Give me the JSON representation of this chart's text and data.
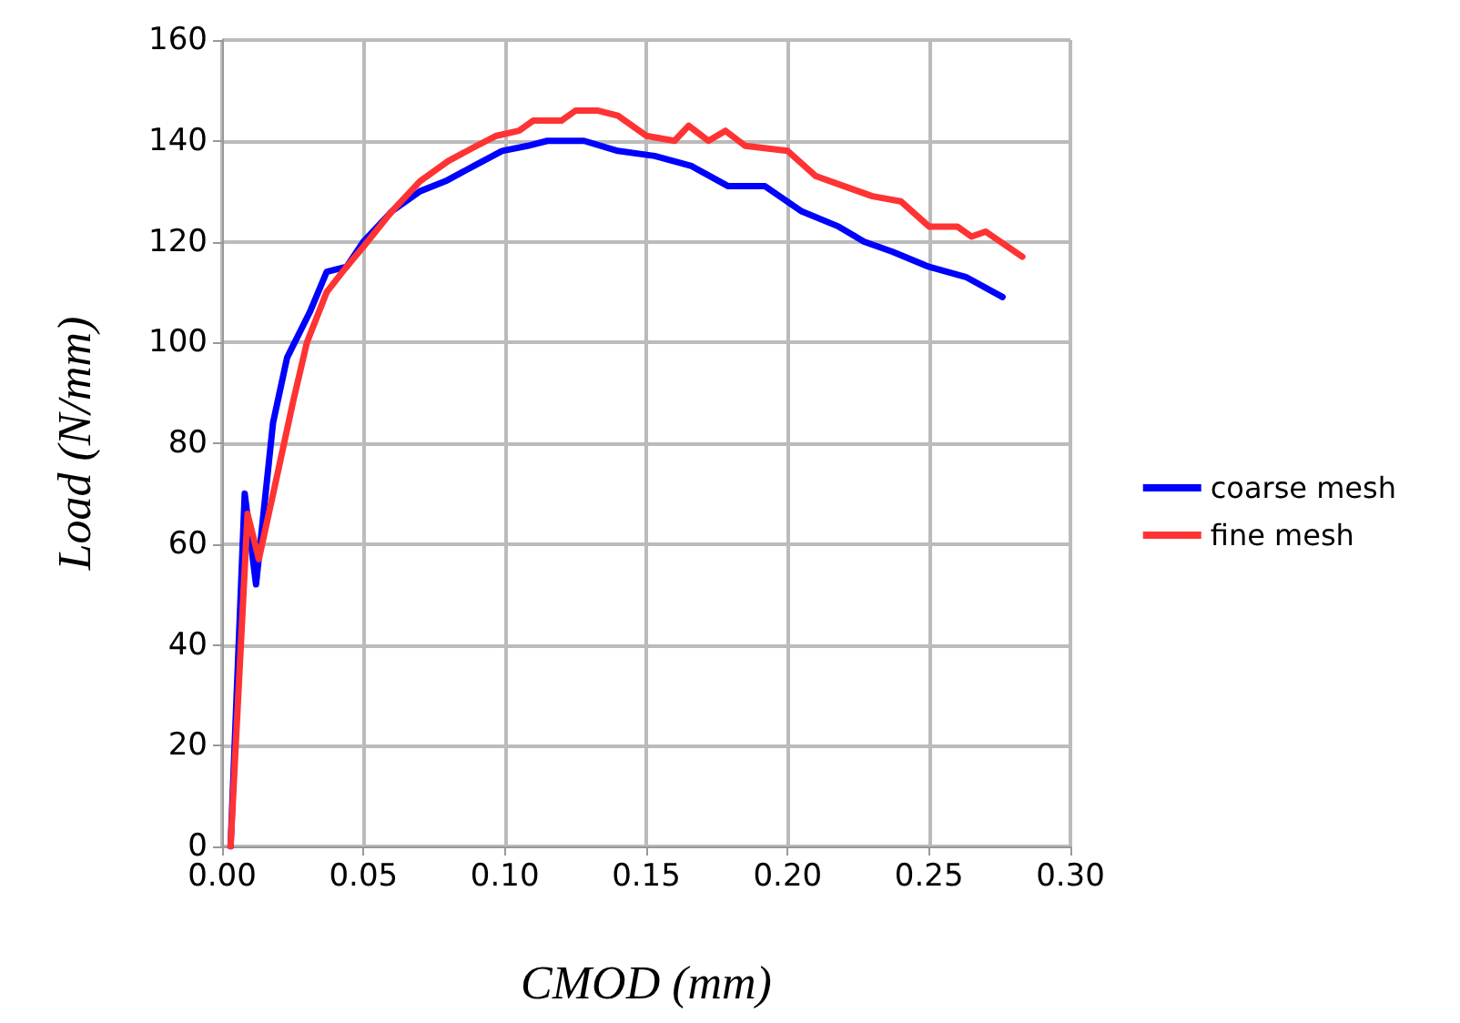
{
  "chart_data": {
    "type": "line",
    "xlabel": "CMOD (mm)",
    "ylabel": "Load (N/mm)",
    "xlim": [
      0,
      0.3
    ],
    "xticks": [
      {
        "value": 0,
        "label": "0.00"
      },
      {
        "value": 0.05,
        "label": "0.05"
      },
      {
        "value": 0.1,
        "label": "0.10"
      },
      {
        "value": 0.15,
        "label": "0.15"
      },
      {
        "value": 0.2,
        "label": "0.20"
      },
      {
        "value": 0.25,
        "label": "0.25"
      },
      {
        "value": 0.3,
        "label": "0.30"
      }
    ],
    "ylim": [
      0,
      160
    ],
    "yticks": [
      0,
      20,
      40,
      60,
      80,
      100,
      120,
      140,
      160
    ],
    "grid": true,
    "legend": "right",
    "marker": "none",
    "line_style": "solid",
    "series": [
      {
        "name": "coarse mesh",
        "color": "#0000ff",
        "x": [
          0.003,
          0.008,
          0.012,
          0.018,
          0.023,
          0.031,
          0.037,
          0.044,
          0.05,
          0.06,
          0.07,
          0.079,
          0.089,
          0.099,
          0.108,
          0.115,
          0.128,
          0.14,
          0.153,
          0.166,
          0.179,
          0.192,
          0.205,
          0.218,
          0.227,
          0.237,
          0.25,
          0.263,
          0.276
        ],
        "values": [
          0,
          70,
          52,
          84,
          97,
          106,
          114,
          115,
          120,
          126,
          130,
          132,
          135,
          138,
          139,
          140,
          140,
          138,
          137,
          135,
          131,
          131,
          126,
          123,
          120,
          118,
          115,
          113,
          109
        ]
      },
      {
        "name": "fine mesh",
        "color": "#ff3333",
        "x": [
          0.003,
          0.009,
          0.013,
          0.02,
          0.025,
          0.03,
          0.037,
          0.044,
          0.05,
          0.06,
          0.07,
          0.08,
          0.09,
          0.097,
          0.105,
          0.11,
          0.12,
          0.125,
          0.133,
          0.14,
          0.15,
          0.16,
          0.165,
          0.172,
          0.178,
          0.185,
          0.2,
          0.21,
          0.22,
          0.23,
          0.24,
          0.25,
          0.26,
          0.265,
          0.27,
          0.283
        ],
        "values": [
          0,
          66,
          57,
          75,
          88,
          100,
          110,
          115,
          119,
          126,
          132,
          136,
          139,
          141,
          142,
          144,
          144,
          146,
          146,
          145,
          141,
          140,
          143,
          140,
          142,
          139,
          138,
          133,
          131,
          129,
          128,
          123,
          123,
          121,
          122,
          117
        ]
      }
    ]
  }
}
